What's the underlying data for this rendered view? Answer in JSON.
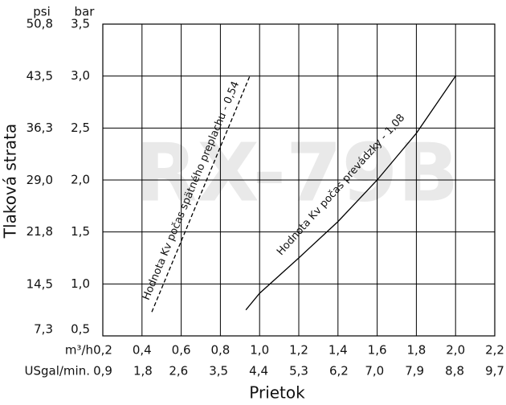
{
  "chart_data": {
    "type": "line",
    "watermark": "RX-79B",
    "y_label": "Tlaková strata",
    "x_label": "Prietok",
    "y_unit": "bar",
    "y2_unit": "psi",
    "x_unit": "m³/h",
    "x2_unit": "USgal/min.",
    "xlim": [
      0.2,
      2.2
    ],
    "xticks": [
      {
        "value": 0.2,
        "label": "0,2"
      },
      {
        "value": 0.4,
        "label": "0,4"
      },
      {
        "value": 0.6,
        "label": "0,6"
      },
      {
        "value": 0.8,
        "label": "0,8"
      },
      {
        "value": 1.0,
        "label": "1,0"
      },
      {
        "value": 1.2,
        "label": "1,2"
      },
      {
        "value": 1.4,
        "label": "1,4"
      },
      {
        "value": 1.6,
        "label": "1,6"
      },
      {
        "value": 1.8,
        "label": "1,8"
      },
      {
        "value": 2.0,
        "label": "2,0"
      },
      {
        "value": 2.2,
        "label": "2,2"
      }
    ],
    "x2lim": [
      0.9,
      9.7
    ],
    "x2ticks": [
      {
        "value": 0.9,
        "label": "0,9"
      },
      {
        "value": 1.8,
        "label": "1,8"
      },
      {
        "value": 2.6,
        "label": "2,6"
      },
      {
        "value": 3.5,
        "label": "3,5"
      },
      {
        "value": 4.4,
        "label": "4,4"
      },
      {
        "value": 5.3,
        "label": "5,3"
      },
      {
        "value": 6.2,
        "label": "6,2"
      },
      {
        "value": 7.0,
        "label": "7,0"
      },
      {
        "value": 7.9,
        "label": "7,9"
      },
      {
        "value": 8.8,
        "label": "8,8"
      },
      {
        "value": 9.7,
        "label": "9,7"
      }
    ],
    "ylim": [
      0.5,
      3.5
    ],
    "yticks": [
      {
        "value": 0.5,
        "label": "0,5"
      },
      {
        "value": 1.0,
        "label": "1,0"
      },
      {
        "value": 1.5,
        "label": "1,5"
      },
      {
        "value": 2.0,
        "label": "2,0"
      },
      {
        "value": 2.5,
        "label": "2,5"
      },
      {
        "value": 3.0,
        "label": "3,0"
      },
      {
        "value": 3.5,
        "label": "3,5"
      }
    ],
    "y2lim": [
      7.3,
      50.8
    ],
    "y2ticks": [
      {
        "value": 7.3,
        "label": "7,3"
      },
      {
        "value": 14.5,
        "label": "14,5"
      },
      {
        "value": 21.8,
        "label": "21,8"
      },
      {
        "value": 29.0,
        "label": "29,0"
      },
      {
        "value": 36.3,
        "label": "36,3"
      },
      {
        "value": 43.5,
        "label": "43,5"
      },
      {
        "value": 50.8,
        "label": "50,8"
      }
    ],
    "grid": true,
    "series": [
      {
        "name": "Hodnota Kv počas spätného preplachu - 0,54",
        "color": "#000000",
        "style": "dashed",
        "x": [
          0.45,
          0.95
        ],
        "values": [
          0.73,
          3.0
        ]
      },
      {
        "name": "Hodnota Kv počas prevádzky - 1,08",
        "color": "#000000",
        "style": "solid",
        "x": [
          0.93,
          1.0,
          1.2,
          1.4,
          1.6,
          1.8,
          2.0
        ],
        "values": [
          0.75,
          0.91,
          1.25,
          1.6,
          2.0,
          2.45,
          3.0
        ]
      }
    ]
  }
}
